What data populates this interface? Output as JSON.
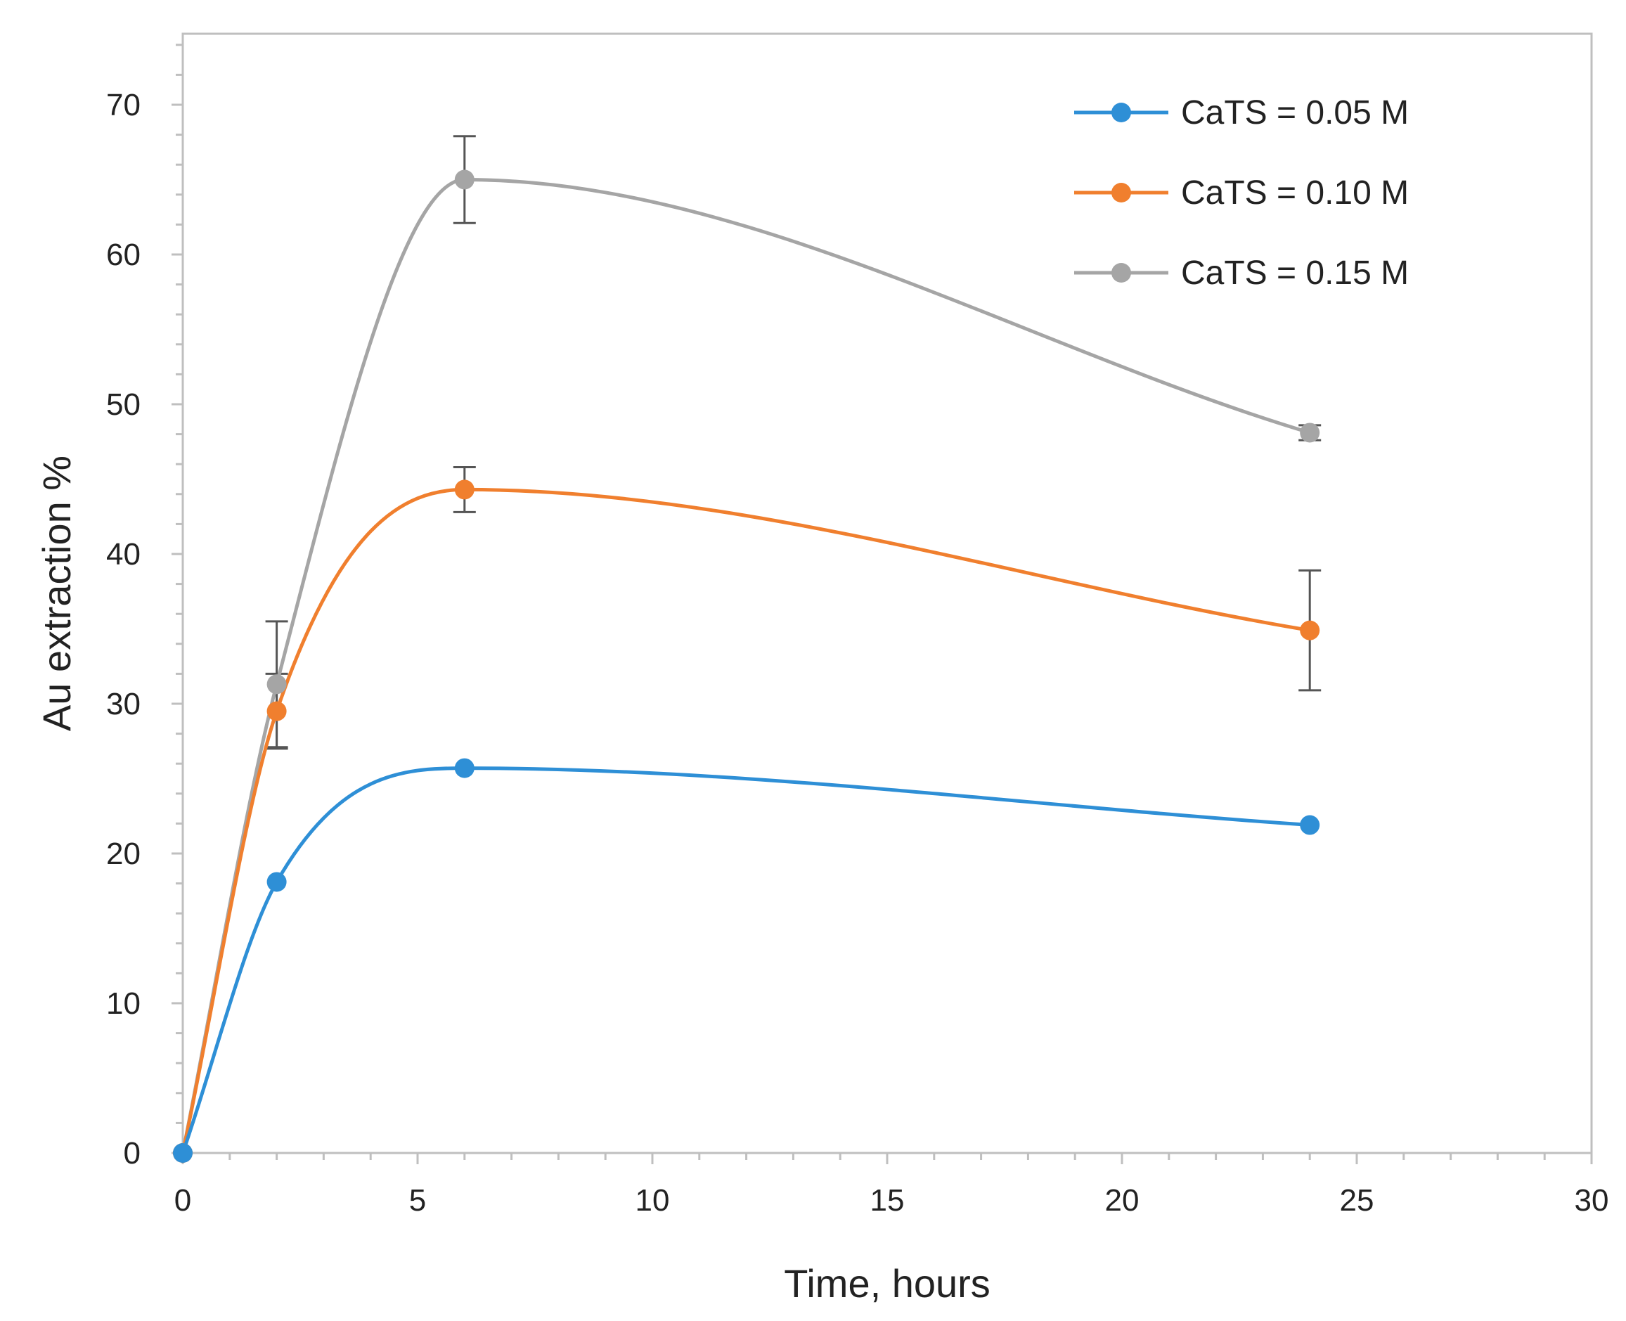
{
  "chart_data": {
    "type": "line",
    "title": "",
    "xlabel": "Time, hours",
    "ylabel": "Au extraction %",
    "xlim": [
      0,
      30
    ],
    "ylim": [
      0,
      75
    ],
    "xticks": [
      0,
      5,
      10,
      15,
      20,
      25,
      30
    ],
    "yticks": [
      0,
      10,
      20,
      30,
      40,
      50,
      60,
      70
    ],
    "x_minor_step": 1,
    "y_minor_step": 2,
    "legend_position": "top-right",
    "grid": false,
    "x": [
      0,
      2,
      6,
      24
    ],
    "series": [
      {
        "name": "CaTS = 0.05 M",
        "color": "#2e8fd6",
        "values": [
          0,
          18.1,
          25.7,
          21.9
        ],
        "errors": [
          0,
          0,
          0,
          0
        ]
      },
      {
        "name": "CaTS = 0.10 M",
        "color": "#f07f2e",
        "values": [
          0,
          29.5,
          44.3,
          34.9
        ],
        "errors": [
          0,
          2.5,
          1.5,
          4.0
        ]
      },
      {
        "name": "CaTS = 0.15 M",
        "color": "#a5a5a5",
        "values": [
          0,
          31.3,
          65.0,
          48.1
        ],
        "errors": [
          0,
          4.2,
          2.9,
          0.5
        ]
      }
    ]
  }
}
